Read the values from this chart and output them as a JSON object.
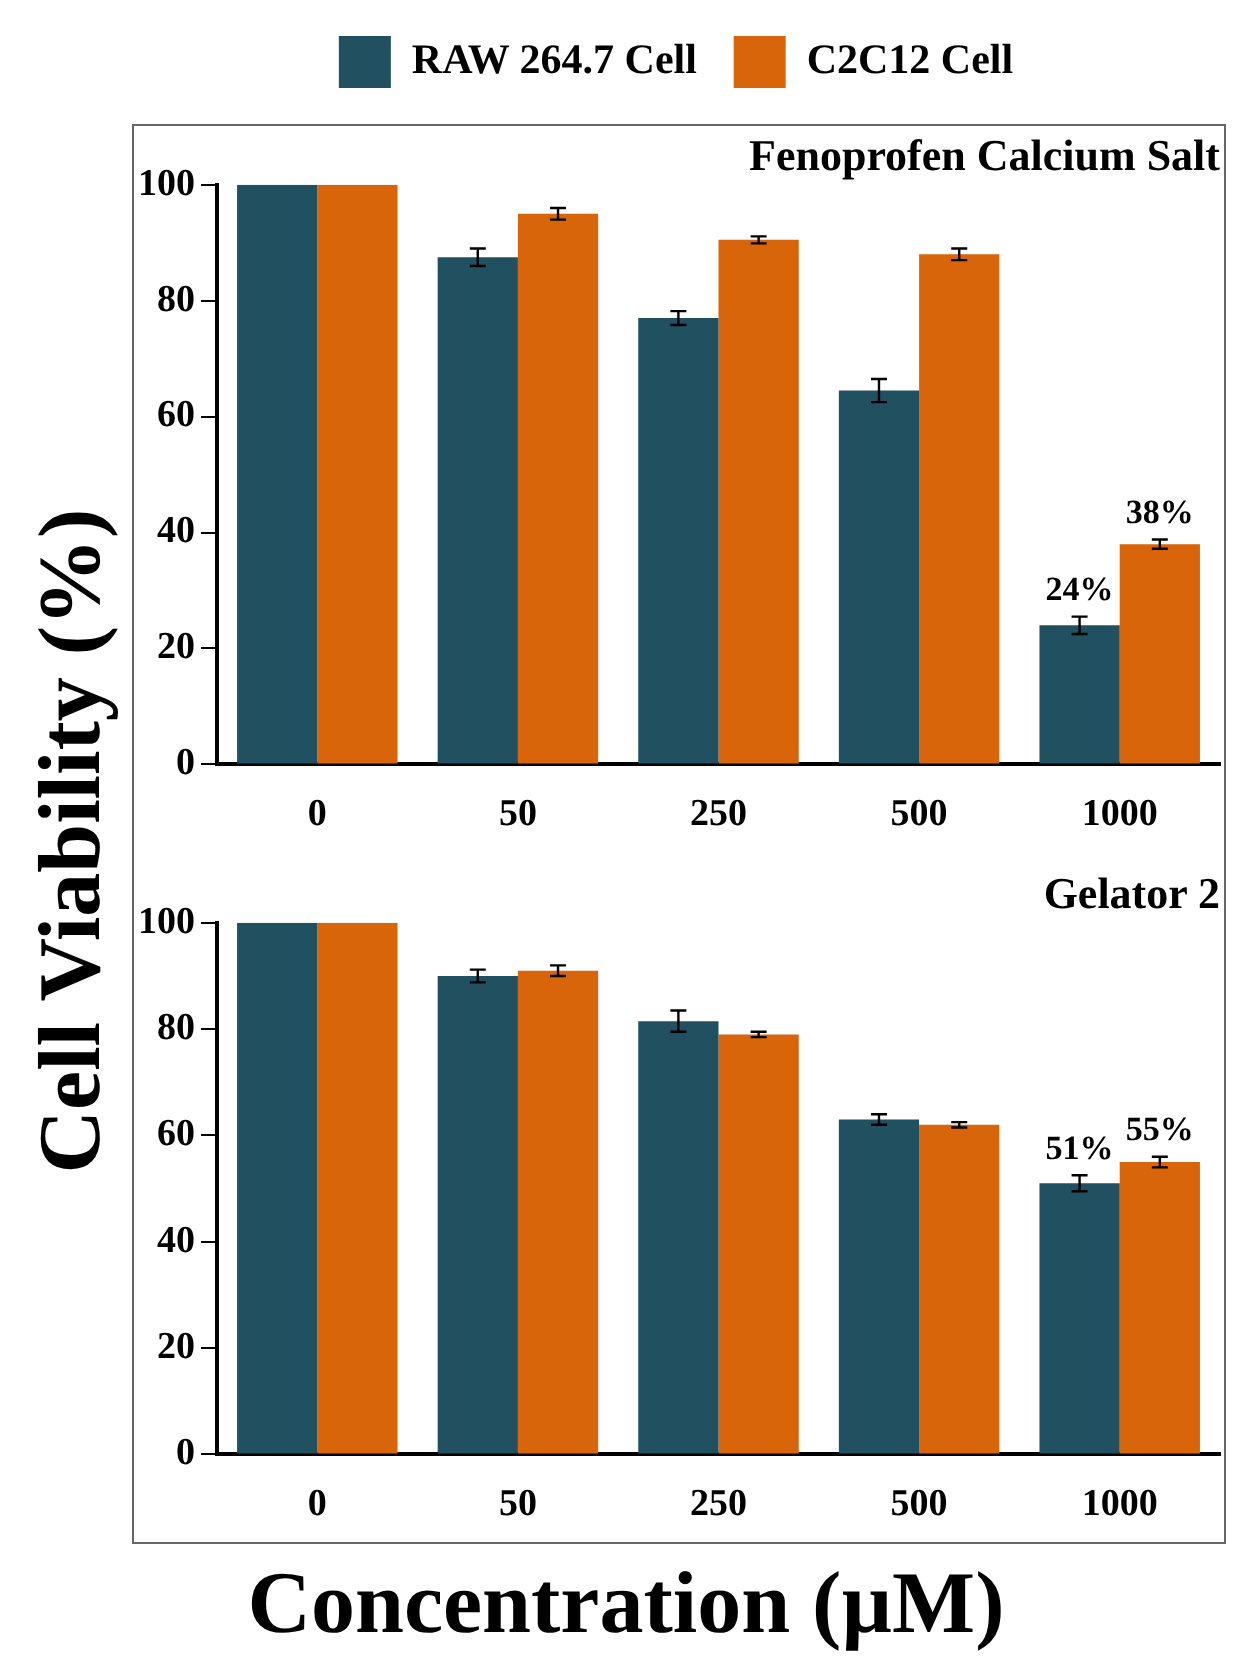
{
  "chart_data": [
    {
      "type": "bar",
      "title": "Fenoprofen Calcium Salt",
      "ylabel": "Cell Viability (%)",
      "categories": [
        "0",
        "50",
        "250",
        "500",
        "1000"
      ],
      "series": [
        {
          "name": "RAW 264.7 Cell",
          "color": "#215061",
          "values": [
            100,
            87.5,
            77,
            64.5,
            24
          ],
          "errors": [
            null,
            1.5,
            1.2,
            2,
            1.5
          ],
          "value_labels": [
            null,
            null,
            null,
            null,
            "24%"
          ]
        },
        {
          "name": "C2C12 Cell",
          "color": "#d9650a",
          "values": [
            100,
            95,
            90.5,
            88,
            38
          ],
          "errors": [
            null,
            1,
            0.6,
            1,
            0.8
          ],
          "value_labels": [
            null,
            null,
            null,
            null,
            "38%"
          ]
        }
      ],
      "ylim": [
        0,
        100
      ],
      "yticks": [
        0,
        20,
        40,
        60,
        80,
        100
      ],
      "grid": false,
      "legend": "top"
    },
    {
      "type": "bar",
      "title": "Gelator 2",
      "xlabel": "Concentration (µM)",
      "categories": [
        "0",
        "50",
        "250",
        "500",
        "1000"
      ],
      "series": [
        {
          "color": "#215061",
          "values": [
            100,
            90,
            81.5,
            63,
            51
          ],
          "errors": [
            null,
            1.2,
            2,
            1,
            1.5
          ],
          "value_labels": [
            null,
            null,
            null,
            null,
            "51%"
          ]
        },
        {
          "color": "#d9650a",
          "values": [
            100,
            91,
            79,
            62,
            55
          ],
          "errors": [
            null,
            1,
            0.5,
            0.5,
            1
          ],
          "value_labels": [
            null,
            null,
            null,
            null,
            "55%"
          ]
        }
      ],
      "ylim": [
        0,
        100
      ],
      "yticks": [
        0,
        20,
        40,
        60,
        80,
        100
      ],
      "grid": false,
      "legend": false
    }
  ]
}
